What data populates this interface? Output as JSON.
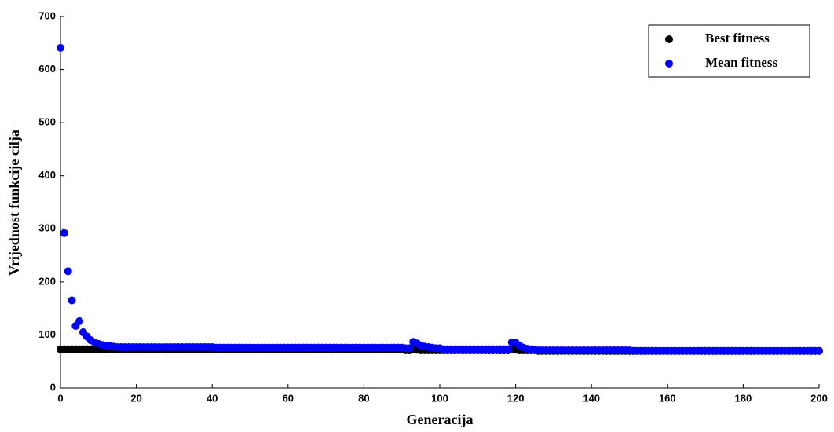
{
  "chart_data": {
    "type": "scatter",
    "xlabel": "Generacija",
    "ylabel": "Vrijednost funkcije cilja",
    "xlim": [
      0,
      200
    ],
    "ylim": [
      0,
      700
    ],
    "xticks": [
      0,
      20,
      40,
      60,
      80,
      100,
      120,
      140,
      160,
      180,
      200
    ],
    "yticks": [
      0,
      100,
      200,
      300,
      400,
      500,
      600,
      700
    ],
    "grid": false,
    "legend": "upper right",
    "x": [
      0,
      1,
      2,
      3,
      4,
      5,
      6,
      7,
      8,
      9,
      10,
      11,
      12,
      13,
      14,
      15,
      16,
      17,
      18,
      19,
      20,
      21,
      22,
      23,
      24,
      25,
      26,
      27,
      28,
      29,
      30,
      31,
      32,
      33,
      34,
      35,
      36,
      37,
      38,
      39,
      40,
      41,
      42,
      43,
      44,
      45,
      46,
      47,
      48,
      49,
      50,
      51,
      52,
      53,
      54,
      55,
      56,
      57,
      58,
      59,
      60,
      61,
      62,
      63,
      64,
      65,
      66,
      67,
      68,
      69,
      70,
      71,
      72,
      73,
      74,
      75,
      76,
      77,
      78,
      79,
      80,
      81,
      82,
      83,
      84,
      85,
      86,
      87,
      88,
      89,
      90,
      91,
      92,
      93,
      94,
      95,
      96,
      97,
      98,
      99,
      100,
      101,
      102,
      103,
      104,
      105,
      106,
      107,
      108,
      109,
      110,
      111,
      112,
      113,
      114,
      115,
      116,
      117,
      118,
      119,
      120,
      121,
      122,
      123,
      124,
      125,
      126,
      127,
      128,
      129,
      130,
      131,
      132,
      133,
      134,
      135,
      136,
      137,
      138,
      139,
      140,
      141,
      142,
      143,
      144,
      145,
      146,
      147,
      148,
      149,
      150,
      151,
      152,
      153,
      154,
      155,
      156,
      157,
      158,
      159,
      160,
      161,
      162,
      163,
      164,
      165,
      166,
      167,
      168,
      169,
      170,
      171,
      172,
      173,
      174,
      175,
      176,
      177,
      178,
      179,
      180,
      181,
      182,
      183,
      184,
      185,
      186,
      187,
      188,
      189,
      190,
      191,
      192,
      193,
      194,
      195,
      196,
      197,
      198,
      199,
      200
    ],
    "series": [
      {
        "name": "Best fitness",
        "color": "#000000",
        "values": [
          73,
          73,
          73,
          73,
          73,
          73,
          73,
          73,
          73,
          73,
          73,
          73,
          73,
          73,
          73,
          73,
          73,
          73,
          73,
          73,
          73,
          73,
          73,
          73,
          73,
          73,
          73,
          73,
          73,
          73,
          73,
          73,
          73,
          73,
          73,
          73,
          73,
          73,
          73,
          73,
          73,
          73,
          73,
          73,
          73,
          73,
          73,
          73,
          73,
          73,
          73,
          73,
          73,
          73,
          73,
          73,
          73,
          73,
          73,
          73,
          73,
          73,
          73,
          73,
          73,
          73,
          73,
          73,
          73,
          73,
          73,
          73,
          73,
          73,
          73,
          73,
          73,
          73,
          73,
          73,
          73,
          73,
          73,
          73,
          73,
          73,
          73,
          73,
          73,
          73,
          73,
          71,
          71,
          73,
          72,
          71,
          71,
          71,
          71,
          71,
          71,
          71,
          71,
          71,
          71,
          71,
          71,
          71,
          71,
          71,
          71,
          71,
          71,
          71,
          71,
          71,
          71,
          71,
          71,
          73,
          72,
          71,
          71,
          71,
          71,
          71,
          70,
          70,
          70,
          70,
          70,
          70,
          70,
          70,
          70,
          70,
          70,
          70,
          70,
          70,
          70,
          70,
          70,
          70,
          70,
          70,
          70,
          70,
          70,
          70,
          70,
          70,
          70,
          70,
          70,
          70,
          70,
          70,
          70,
          70,
          70,
          70,
          70,
          70,
          70,
          70,
          70,
          70,
          70,
          70,
          70,
          70,
          70,
          70,
          70,
          70,
          70,
          70,
          70,
          70,
          70,
          70,
          70,
          70,
          70,
          70,
          70,
          70,
          70,
          70,
          70,
          70,
          70,
          70,
          70,
          70,
          70,
          70,
          70,
          70,
          70
        ]
      },
      {
        "name": "Mean fitness",
        "color": "#0000ff",
        "values": [
          641,
          292,
          220,
          165,
          117,
          126,
          105,
          97,
          90,
          86,
          83,
          81,
          80,
          79,
          78,
          77,
          77,
          77,
          77,
          77,
          77,
          77,
          77,
          77,
          77,
          77,
          77,
          77,
          77,
          77,
          77,
          77,
          77,
          77,
          77,
          77,
          77,
          77,
          77,
          77,
          77,
          76,
          76,
          76,
          76,
          76,
          76,
          76,
          76,
          76,
          76,
          76,
          76,
          76,
          76,
          76,
          76,
          76,
          76,
          76,
          76,
          76,
          76,
          76,
          76,
          76,
          76,
          76,
          76,
          76,
          76,
          76,
          76,
          76,
          76,
          76,
          76,
          76,
          76,
          76,
          76,
          76,
          76,
          76,
          76,
          76,
          76,
          76,
          76,
          76,
          76,
          75,
          75,
          87,
          84,
          80,
          78,
          77,
          76,
          75,
          75,
          73,
          73,
          73,
          73,
          73,
          73,
          73,
          73,
          73,
          73,
          73,
          73,
          73,
          73,
          73,
          73,
          73,
          73,
          86,
          85,
          80,
          76,
          74,
          73,
          72,
          71,
          71,
          71,
          71,
          71,
          71,
          71,
          71,
          71,
          71,
          71,
          71,
          71,
          71,
          71,
          71,
          71,
          71,
          71,
          71,
          71,
          71,
          71,
          71,
          71,
          70,
          70,
          70,
          70,
          70,
          70,
          70,
          70,
          70,
          70,
          70,
          70,
          70,
          70,
          70,
          70,
          70,
          70,
          70,
          70,
          70,
          70,
          70,
          70,
          70,
          70,
          70,
          70,
          70,
          70,
          70,
          70,
          70,
          70,
          70,
          70,
          70,
          70,
          70,
          70,
          70,
          70,
          70,
          70,
          70,
          70,
          70,
          70,
          70,
          70
        ]
      }
    ]
  }
}
